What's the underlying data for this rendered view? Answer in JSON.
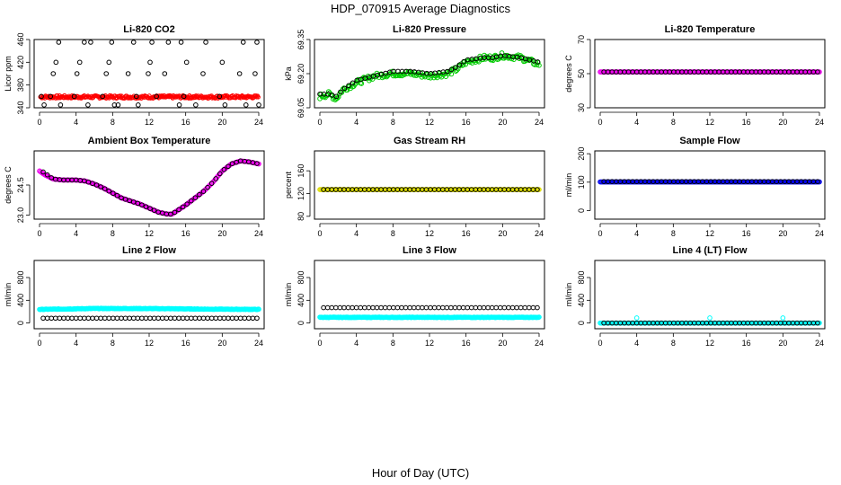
{
  "figure": {
    "title": "HDP_070915  Average Diagnostics",
    "xlabel": "Hour of Day (UTC)"
  },
  "chart_data": [
    {
      "type": "scatter",
      "title": "Li-820 CO2",
      "xlabel": "",
      "ylabel": "Licor ppm",
      "xlim": [
        0,
        24
      ],
      "ylim": [
        340,
        460
      ],
      "xticks": [
        "0",
        "4",
        "8",
        "12",
        "16",
        "20",
        "24"
      ],
      "yticks": [
        "340",
        "380",
        "420",
        "460"
      ],
      "series": [
        {
          "name": "co2-sampled",
          "color": "#ff0000",
          "style": "band",
          "x0": 0.1,
          "x1": 24,
          "y": 359,
          "halfwidth": 2.5,
          "step": 0.08
        },
        {
          "name": "co2-levels",
          "color": "#000000",
          "style": "scatter",
          "x": [
            0.2,
            0.5,
            1.2,
            1.5,
            1.8,
            2.1,
            2.3,
            3.8,
            4.1,
            4.4,
            4.9,
            5.3,
            5.6,
            6.9,
            7.3,
            7.6,
            7.9,
            8.2,
            8.6,
            9.7,
            10.3,
            10.6,
            10.8,
            11.9,
            12.1,
            12.3,
            12.8,
            13.7,
            14.1,
            15.3,
            15.5,
            15.8,
            16.1,
            17.1,
            17.9,
            18.2,
            19.7,
            20.0,
            20.3,
            21.9,
            22.3,
            22.6,
            23.6,
            23.8,
            24.0
          ],
          "y": [
            360,
            345,
            360,
            400,
            420,
            460,
            345,
            360,
            400,
            420,
            460,
            345,
            460,
            360,
            400,
            420,
            460,
            345,
            345,
            400,
            460,
            360,
            345,
            400,
            420,
            460,
            360,
            400,
            460,
            345,
            460,
            360,
            420,
            345,
            400,
            460,
            360,
            420,
            345,
            400,
            460,
            345,
            400,
            460,
            345
          ]
        }
      ]
    },
    {
      "type": "scatter",
      "title": "Li-820 Pressure",
      "xlabel": "",
      "ylabel": "kPa",
      "xlim": [
        0,
        24
      ],
      "ylim": [
        69.05,
        69.35
      ],
      "xticks": [
        "0",
        "4",
        "8",
        "12",
        "16",
        "20",
        "24"
      ],
      "yticks": [
        "69.05",
        "69.20",
        "69.35"
      ],
      "series": [
        {
          "name": "pressure-profile",
          "color": "#00cc00",
          "style": "profile",
          "step": 0.12,
          "spread": 0.012,
          "points": [
            [
              0,
              69.1
            ],
            [
              1,
              69.11
            ],
            [
              1.8,
              69.09
            ],
            [
              2.5,
              69.13
            ],
            [
              4,
              69.16
            ],
            [
              6,
              69.19
            ],
            [
              8,
              69.2
            ],
            [
              10,
              69.2
            ],
            [
              12,
              69.19
            ],
            [
              14,
              69.2
            ],
            [
              15,
              69.22
            ],
            [
              16,
              69.25
            ],
            [
              18,
              69.27
            ],
            [
              19,
              69.27
            ],
            [
              20,
              69.28
            ],
            [
              22,
              69.27
            ],
            [
              24,
              69.24
            ]
          ]
        },
        {
          "name": "pressure-average",
          "color": "#000000",
          "style": "profile",
          "step": 0.45,
          "spread": 0,
          "points": [
            [
              0,
              69.11
            ],
            [
              1,
              69.11
            ],
            [
              1.8,
              69.1
            ],
            [
              2.5,
              69.13
            ],
            [
              4,
              69.17
            ],
            [
              6,
              69.19
            ],
            [
              8,
              69.21
            ],
            [
              10,
              69.21
            ],
            [
              12,
              69.2
            ],
            [
              14,
              69.21
            ],
            [
              15,
              69.23
            ],
            [
              16,
              69.26
            ],
            [
              18,
              69.27
            ],
            [
              19,
              69.27
            ],
            [
              20,
              69.28
            ],
            [
              22,
              69.27
            ],
            [
              24,
              69.25
            ]
          ]
        }
      ]
    },
    {
      "type": "scatter",
      "title": "Li-820 Temperature",
      "xlabel": "",
      "ylabel": "degrees C",
      "xlim": [
        0,
        24
      ],
      "ylim": [
        30,
        70
      ],
      "xticks": [
        "0",
        "4",
        "8",
        "12",
        "16",
        "20",
        "24"
      ],
      "yticks": [
        "30",
        "50",
        "70"
      ],
      "series": [
        {
          "name": "temp-sampled",
          "color": "#ee00ee",
          "style": "profile",
          "step": 0.1,
          "spread": 0,
          "points": [
            [
              0,
              51
            ],
            [
              24,
              51
            ]
          ]
        },
        {
          "name": "temp-average",
          "color": "#000000",
          "style": "profile",
          "step": 0.45,
          "spread": 0,
          "points": [
            [
              0.4,
              51
            ],
            [
              24,
              51
            ]
          ]
        }
      ]
    },
    {
      "type": "scatter",
      "title": "Ambient Box Temperature",
      "xlabel": "",
      "ylabel": "degrees C",
      "xlim": [
        0,
        24
      ],
      "ylim": [
        22.8,
        26.2
      ],
      "xticks": [
        "0",
        "4",
        "8",
        "12",
        "16",
        "20",
        "24"
      ],
      "yticks": [
        "23.0",
        "24.5"
      ],
      "series": [
        {
          "name": "box-temp-sampled",
          "color": "#ee00ee",
          "style": "profile",
          "step": 0.1,
          "spread": 0,
          "points": [
            [
              0,
              25.2
            ],
            [
              0.6,
              25.0
            ],
            [
              1.5,
              24.8
            ],
            [
              2.5,
              24.75
            ],
            [
              4,
              24.75
            ],
            [
              5,
              24.7
            ],
            [
              6,
              24.55
            ],
            [
              7,
              24.35
            ],
            [
              8,
              24.1
            ],
            [
              9,
              23.85
            ],
            [
              10,
              23.7
            ],
            [
              11,
              23.55
            ],
            [
              12,
              23.35
            ],
            [
              13,
              23.15
            ],
            [
              14,
              23.05
            ],
            [
              14.5,
              23.05
            ],
            [
              15,
              23.2
            ],
            [
              16,
              23.5
            ],
            [
              17,
              23.85
            ],
            [
              18,
              24.2
            ],
            [
              19,
              24.65
            ],
            [
              20,
              25.2
            ],
            [
              21,
              25.55
            ],
            [
              22,
              25.7
            ],
            [
              23,
              25.65
            ],
            [
              24,
              25.55
            ]
          ]
        },
        {
          "name": "box-temp-average",
          "color": "#000000",
          "style": "profile",
          "step": 0.45,
          "spread": 0,
          "points": [
            [
              0.4,
              25.15
            ],
            [
              1.5,
              24.8
            ],
            [
              2.5,
              24.75
            ],
            [
              4,
              24.75
            ],
            [
              5,
              24.7
            ],
            [
              6,
              24.55
            ],
            [
              7,
              24.35
            ],
            [
              8,
              24.1
            ],
            [
              9,
              23.85
            ],
            [
              10,
              23.7
            ],
            [
              11,
              23.55
            ],
            [
              12,
              23.35
            ],
            [
              13,
              23.15
            ],
            [
              14,
              23.05
            ],
            [
              14.5,
              23.05
            ],
            [
              15,
              23.2
            ],
            [
              16,
              23.5
            ],
            [
              17,
              23.85
            ],
            [
              18,
              24.2
            ],
            [
              19,
              24.65
            ],
            [
              20,
              25.2
            ],
            [
              21,
              25.55
            ],
            [
              22,
              25.7
            ],
            [
              23,
              25.65
            ],
            [
              24,
              25.55
            ]
          ]
        }
      ]
    },
    {
      "type": "scatter",
      "title": "Gas Stream RH",
      "xlabel": "",
      "ylabel": "percent",
      "xlim": [
        0,
        24
      ],
      "ylim": [
        75,
        195
      ],
      "xticks": [
        "0",
        "4",
        "8",
        "12",
        "16",
        "20",
        "24"
      ],
      "yticks": [
        "80",
        "120",
        "160"
      ],
      "series": [
        {
          "name": "rh-sampled",
          "color": "#dddd00",
          "style": "profile",
          "step": 0.1,
          "spread": 0,
          "points": [
            [
              0,
              127
            ],
            [
              24,
              127
            ]
          ]
        },
        {
          "name": "rh-average",
          "color": "#000000",
          "style": "profile",
          "step": 0.45,
          "spread": 0,
          "points": [
            [
              0.4,
              127
            ],
            [
              24,
              127
            ]
          ]
        }
      ]
    },
    {
      "type": "scatter",
      "title": "Sample Flow",
      "xlabel": "",
      "ylabel": "ml/min",
      "xlim": [
        0,
        24
      ],
      "ylim": [
        -30,
        210
      ],
      "xticks": [
        "0",
        "4",
        "8",
        "12",
        "16",
        "20",
        "24"
      ],
      "yticks": [
        "0",
        "100",
        "200"
      ],
      "series": [
        {
          "name": "sample-sampled",
          "color": "#0000ee",
          "style": "profile",
          "step": 0.1,
          "spread": 0,
          "points": [
            [
              0,
              101
            ],
            [
              24,
              101
            ]
          ]
        },
        {
          "name": "sample-average",
          "color": "#000000",
          "style": "profile",
          "step": 0.45,
          "spread": 0,
          "points": [
            [
              0.4,
              102
            ],
            [
              24,
              102
            ]
          ]
        }
      ]
    },
    {
      "type": "scatter",
      "title": "Line 2 Flow",
      "xlabel": "",
      "ylabel": "ml/min",
      "xlim": [
        0,
        24
      ],
      "ylim": [
        -100,
        1100
      ],
      "xticks": [
        "0",
        "4",
        "8",
        "12",
        "16",
        "20",
        "24"
      ],
      "yticks": [
        "0",
        "400",
        "800"
      ],
      "series": [
        {
          "name": "line2-sampled",
          "color": "#00ffff",
          "style": "profile",
          "step": 0.08,
          "spread": 5,
          "points": [
            [
              0,
              240
            ],
            [
              4,
              250
            ],
            [
              6,
              255
            ],
            [
              10,
              255
            ],
            [
              14,
              252
            ],
            [
              18,
              245
            ],
            [
              24,
              240
            ]
          ]
        },
        {
          "name": "line2-average",
          "color": "#000000",
          "style": "profile",
          "step": 0.45,
          "spread": 0,
          "points": [
            [
              0.4,
              85
            ],
            [
              24,
              85
            ]
          ]
        }
      ]
    },
    {
      "type": "scatter",
      "title": "Line 3 Flow",
      "xlabel": "",
      "ylabel": "ml/min",
      "xlim": [
        0,
        24
      ],
      "ylim": [
        -100,
        1100
      ],
      "xticks": [
        "0",
        "4",
        "8",
        "12",
        "16",
        "20",
        "24"
      ],
      "yticks": [
        "0",
        "400",
        "800"
      ],
      "series": [
        {
          "name": "line3-sampled",
          "color": "#00ffff",
          "style": "profile",
          "step": 0.08,
          "spread": 5,
          "points": [
            [
              0,
              100
            ],
            [
              24,
              100
            ]
          ]
        },
        {
          "name": "line3-average",
          "color": "#000000",
          "style": "profile",
          "step": 0.45,
          "spread": 0,
          "points": [
            [
              0.4,
              270
            ],
            [
              24,
              270
            ]
          ]
        }
      ]
    },
    {
      "type": "scatter",
      "title": "Line 4 (LT) Flow",
      "xlabel": "",
      "ylabel": "ml/min",
      "xlim": [
        0,
        24
      ],
      "ylim": [
        -100,
        1100
      ],
      "xticks": [
        "0",
        "4",
        "8",
        "12",
        "16",
        "20",
        "24"
      ],
      "yticks": [
        "0",
        "400",
        "800"
      ],
      "series": [
        {
          "name": "line4-sampled",
          "color": "#00ffff",
          "style": "profile",
          "step": 0.1,
          "spread": 0,
          "points": [
            [
              0,
              0
            ],
            [
              24,
              0
            ]
          ]
        },
        {
          "name": "line4-spikes",
          "color": "#00ffff",
          "style": "scatter",
          "x": [
            4,
            12,
            20
          ],
          "y": [
            90,
            90,
            90
          ]
        },
        {
          "name": "line4-average",
          "color": "#000000",
          "style": "profile",
          "step": 0.45,
          "spread": 0,
          "points": [
            [
              0.4,
              0
            ],
            [
              24,
              0
            ]
          ]
        }
      ]
    }
  ]
}
